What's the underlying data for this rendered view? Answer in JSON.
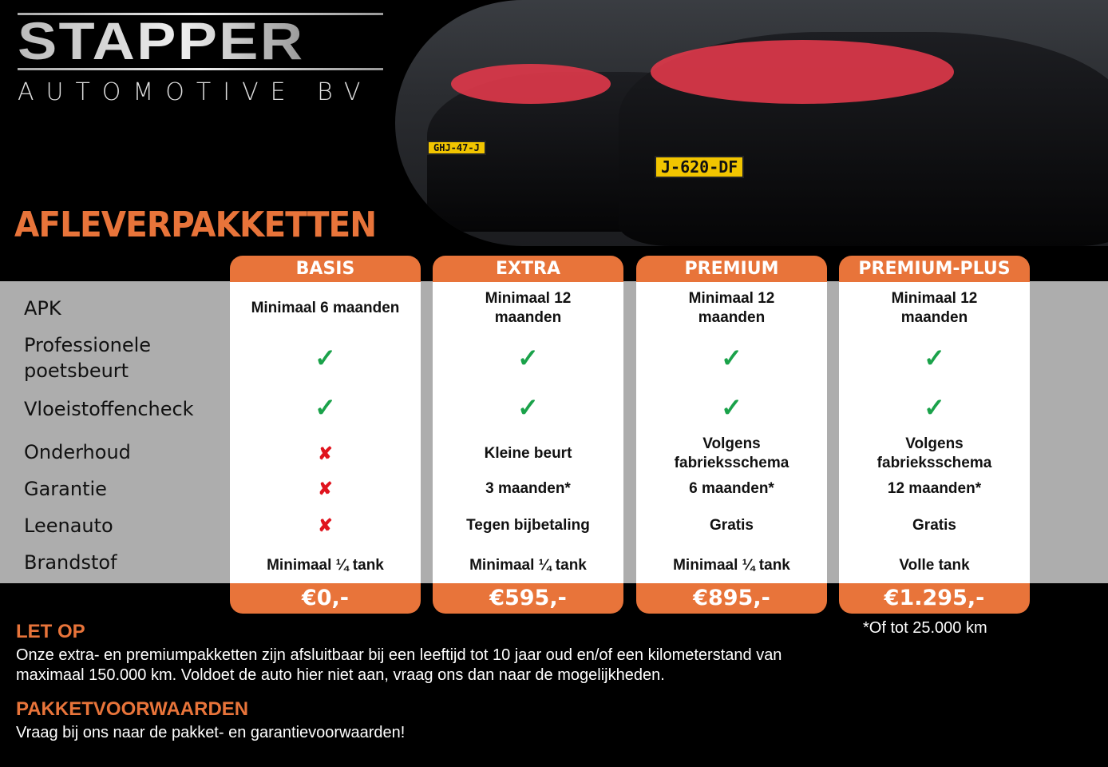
{
  "brand": {
    "logo_main": "STAPPER",
    "logo_sub": "AUTOMOTIVE BV"
  },
  "title": "AFLEVERPAKKETTEN",
  "photo": {
    "plate_left": "GHJ-47-J",
    "plate_right": "J-620-DF"
  },
  "colors": {
    "accent": "#e8743a",
    "check": "#1aa24a",
    "cross": "#e0141e",
    "band": "#adadad"
  },
  "rows": [
    "APK",
    "Professionele\npoetsbeurt",
    "Vloeistoffencheck",
    "Onderhoud",
    "Garantie",
    "Leenauto",
    "Brandstof"
  ],
  "packages": [
    {
      "name": "BASIS",
      "price": "€0,-",
      "values": [
        "Minimaal 6 maanden",
        "check-icon",
        "check-icon",
        "cross-icon",
        "cross-icon",
        "cross-icon",
        "Minimaal ¼ tank"
      ]
    },
    {
      "name": "EXTRA",
      "price": "€595,-",
      "values": [
        "Minimaal 12\nmaanden",
        "check-icon",
        "check-icon",
        "Kleine beurt",
        "3 maanden*",
        "Tegen bijbetaling",
        "Minimaal ¼ tank"
      ]
    },
    {
      "name": "PREMIUM",
      "price": "€895,-",
      "values": [
        "Minimaal 12\nmaanden",
        "check-icon",
        "check-icon",
        "Volgens\nfabrieksschema",
        "6 maanden*",
        "Gratis",
        "Minimaal ¼ tank"
      ]
    },
    {
      "name": "PREMIUM-PLUS",
      "price": "€1.295,-",
      "values": [
        "Minimaal 12\nmaanden",
        "check-icon",
        "check-icon",
        "Volgens\nfabrieksschema",
        "12 maanden*",
        "Gratis",
        "Volle tank"
      ]
    }
  ],
  "footnote": "*Of tot 25.000 km",
  "let_op": {
    "heading": "LET OP",
    "text": "Onze extra- en premiumpakketten zijn afsluitbaar bij een leeftijd tot 10 jaar oud en/of een kilometerstand van maximaal 150.000 km. Voldoet de auto hier niet aan, vraag ons dan naar de mogelijkheden."
  },
  "voorwaarden": {
    "heading": "PAKKETVOORWAARDEN",
    "text": "Vraag bij ons naar de pakket- en garantievoorwaarden!"
  }
}
